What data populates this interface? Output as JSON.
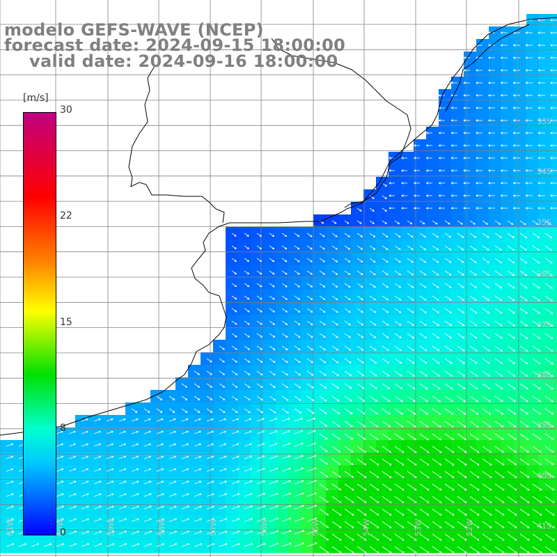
{
  "header": {
    "model_line": "modelo GEFS-WAVE (NCEP)",
    "forecast_line": "forecast date: 2024-09-15 18:00:00",
    "valid_line": "valid date: 2024-09-16 18:00:00"
  },
  "colorbar": {
    "unit": "[m/s]",
    "ticks": [
      {
        "label": "30",
        "value": 30
      },
      {
        "label": "22",
        "value": 22
      },
      {
        "label": "15",
        "value": 15
      },
      {
        "label": "8",
        "value": 8
      },
      {
        "label": "0",
        "value": 0
      }
    ],
    "range": [
      0,
      30
    ]
  },
  "map": {
    "lat_labels": [
      "33S",
      "34S",
      "35S",
      "36S",
      "37S",
      "38S",
      "39S",
      "40S",
      "41S"
    ],
    "lon_labels": [
      "61W",
      "60W",
      "59W",
      "58W",
      "57W",
      "56W",
      "55W",
      "54W",
      "53W",
      "52W"
    ],
    "colors": {
      "land": "#ffffff",
      "grid": "#808080",
      "coast": "#000000",
      "arrows": "#ffffff",
      "label": "#c8c8c8"
    }
  }
}
